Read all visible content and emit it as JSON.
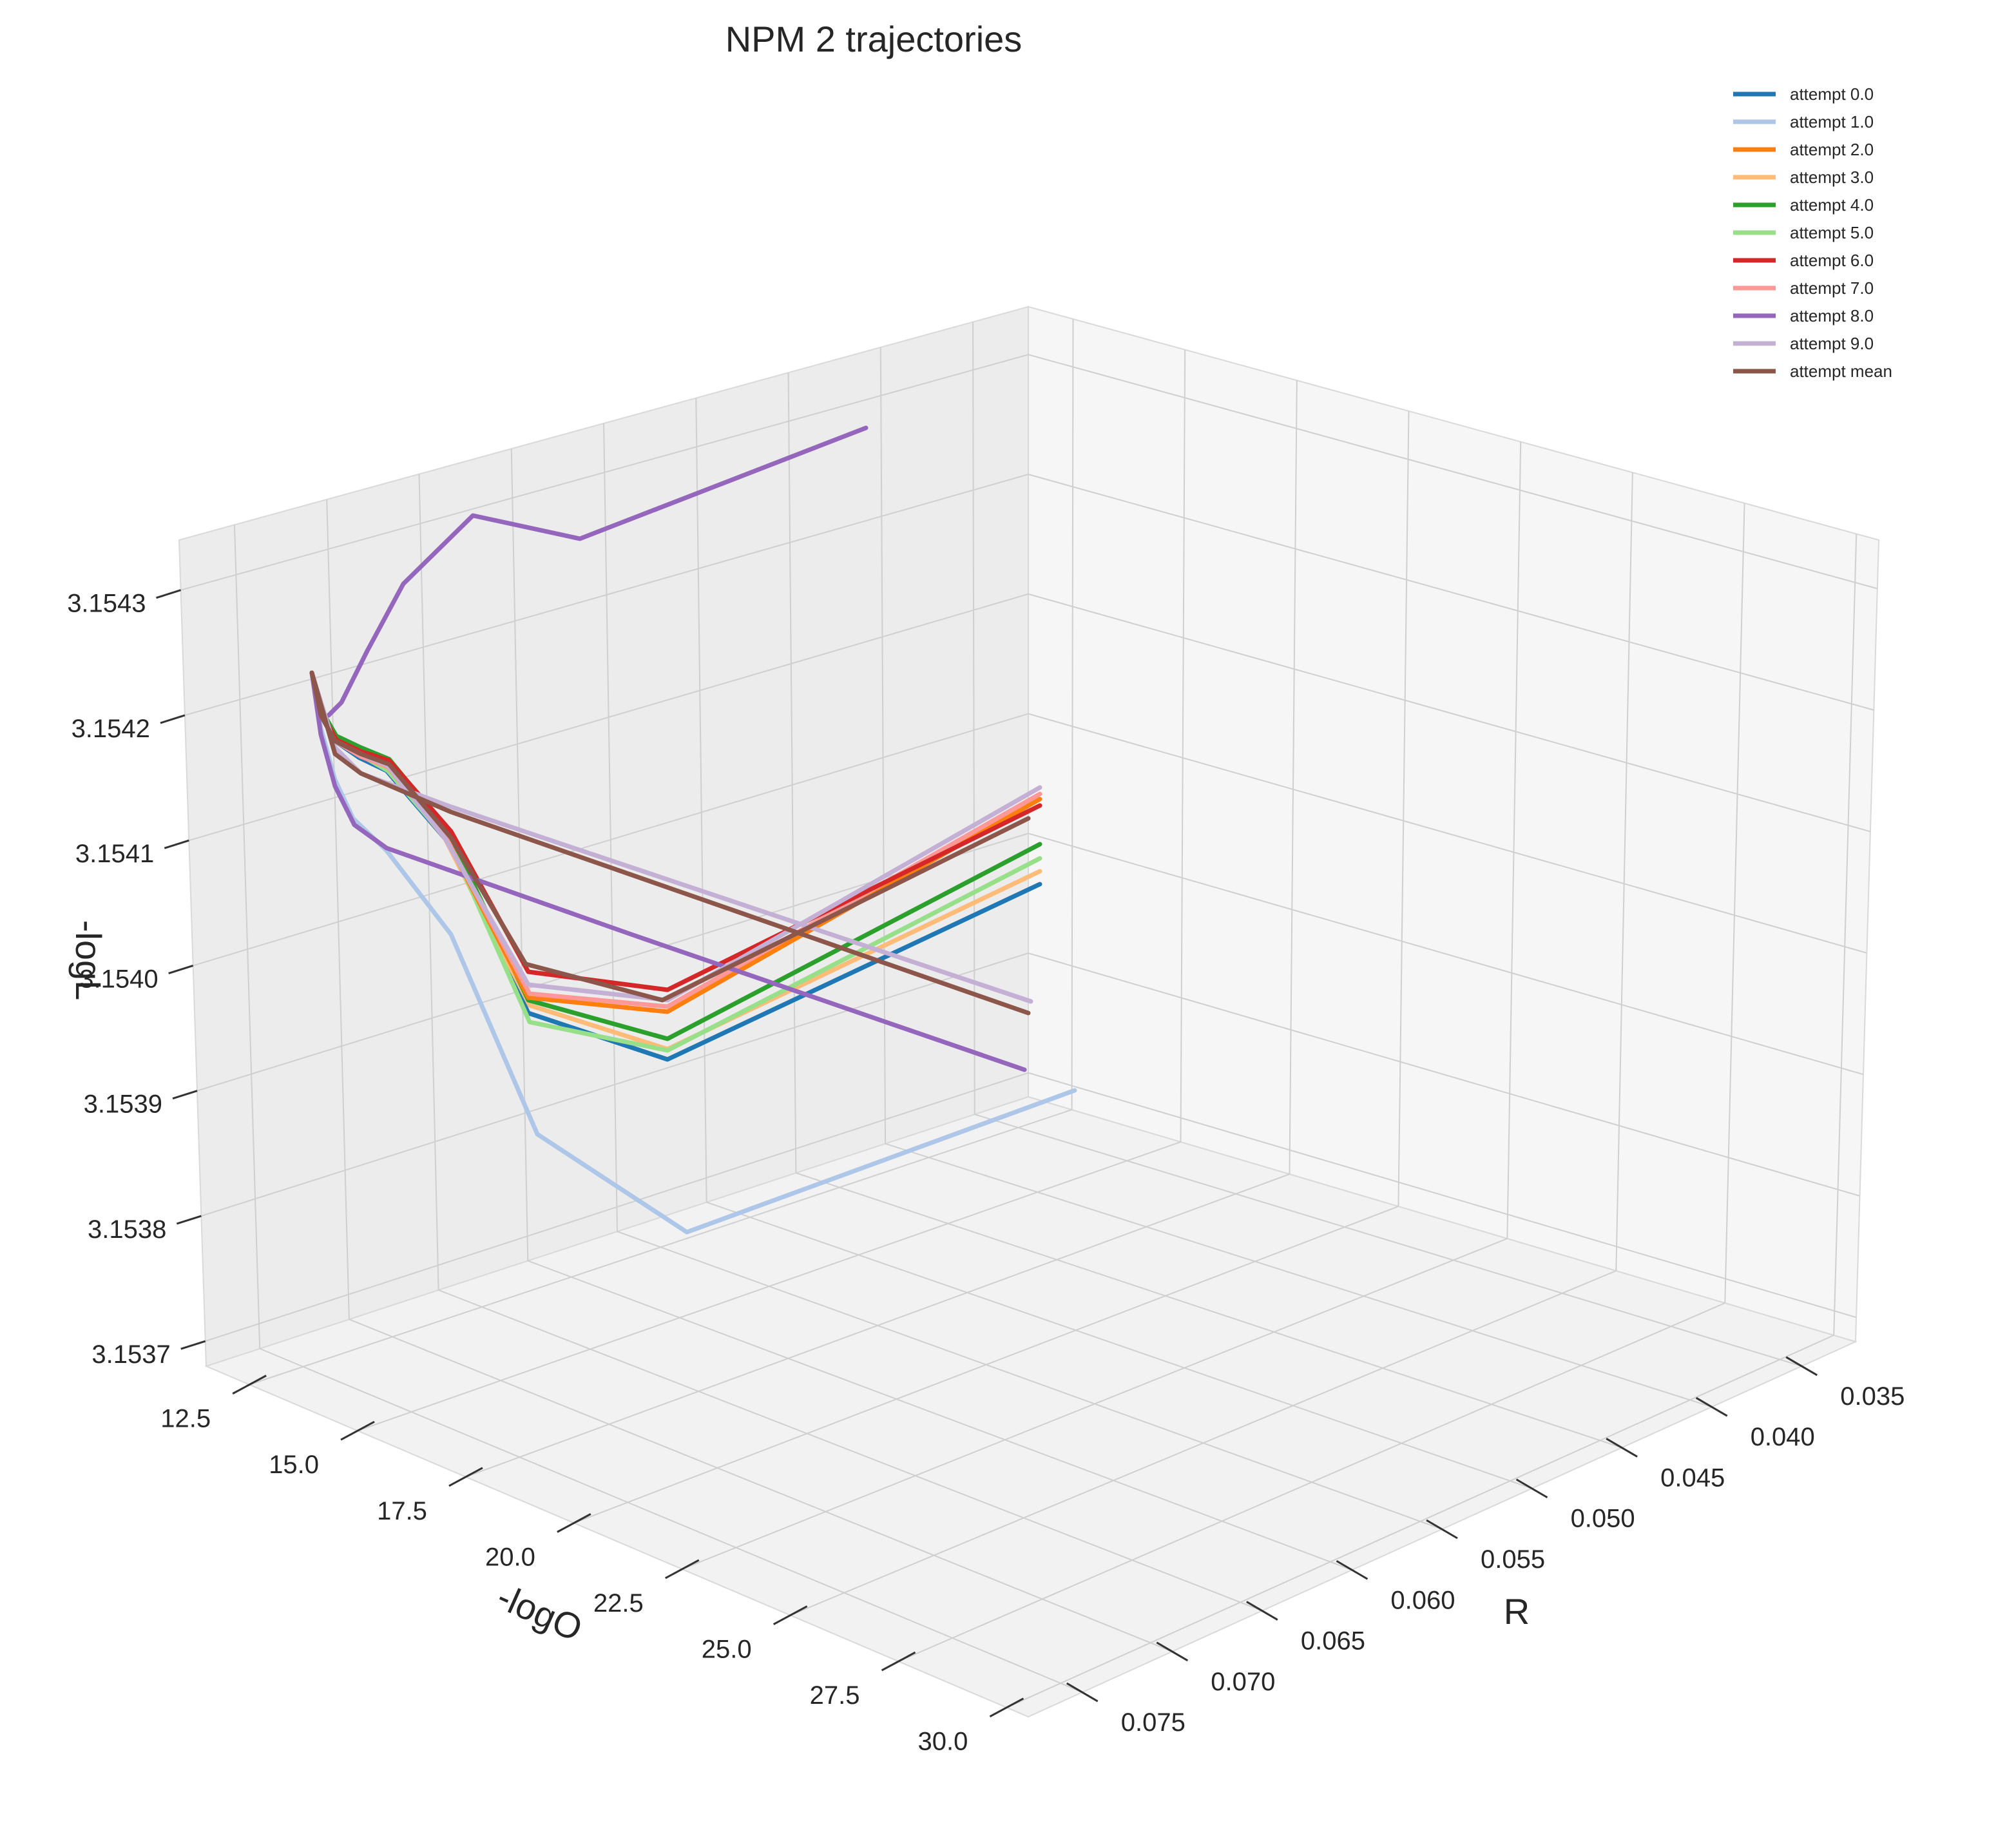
{
  "chart_data": {
    "type": "line",
    "projection": "3d",
    "title": "NPM 2 trajectories",
    "axes": {
      "x": {
        "label": "R",
        "ticks": [
          "0.035",
          "0.040",
          "0.045",
          "0.050",
          "0.055",
          "0.060",
          "0.065",
          "0.070",
          "0.075"
        ],
        "range": [
          0.032,
          0.078
        ]
      },
      "y": {
        "label": "-logO",
        "ticks": [
          "12.5",
          "15.0",
          "17.5",
          "20.0",
          "22.5",
          "25.0",
          "27.5",
          "30.0"
        ],
        "range": [
          11.5,
          30.5
        ]
      },
      "z": {
        "label": "-logL",
        "ticks": [
          "3.1537",
          "3.1538",
          "3.1539",
          "3.1540",
          "3.1541",
          "3.1542",
          "3.1543"
        ],
        "range": [
          3.15368,
          3.15434
        ]
      }
    },
    "grid": true,
    "legend": "top-right",
    "series": [
      {
        "name": "attempt 0.0",
        "color": "#1f77b4"
      },
      {
        "name": "attempt 1.0",
        "color": "#aec7e8"
      },
      {
        "name": "attempt 2.0",
        "color": "#ff7f0e"
      },
      {
        "name": "attempt 3.0",
        "color": "#ffbb78"
      },
      {
        "name": "attempt 4.0",
        "color": "#2ca02c"
      },
      {
        "name": "attempt 5.0",
        "color": "#98df8a"
      },
      {
        "name": "attempt 6.0",
        "color": "#d62728"
      },
      {
        "name": "attempt 7.0",
        "color": "#ff9896"
      },
      {
        "name": "attempt 8.0",
        "color": "#9467bd"
      },
      {
        "name": "attempt 9.0",
        "color": "#c5b0d5"
      },
      {
        "name": "attempt mean",
        "color": "#8c564b"
      }
    ]
  }
}
